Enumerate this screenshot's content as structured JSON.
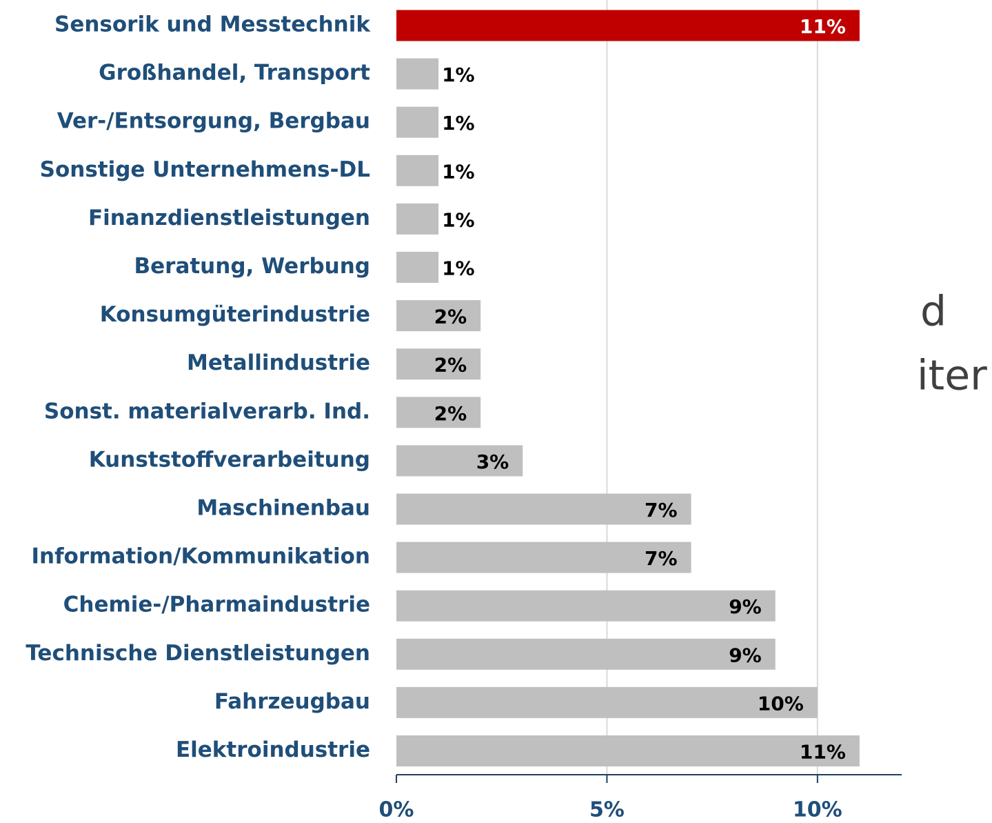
{
  "chart_data": {
    "type": "hbar",
    "categories": [
      "Sensorik und Messtechnik",
      "Großhandel, Transport",
      "Ver-/Entsorgung, Bergbau",
      "Sonstige Unternehmens-DL",
      "Finanzdienstleistungen",
      "Beratung, Werbung",
      "Konsumgüterindustrie",
      "Metallindustrie",
      "Sonst. materialverarb. Ind.",
      "Kunststoffverarbeitung",
      "Maschinenbau",
      "Information/Kommunikation",
      "Chemie-/Pharmaindustrie",
      "Technische Dienstleistungen",
      "Fahrzeugbau",
      "Elektroindustrie"
    ],
    "values": [
      11,
      1,
      1,
      1,
      1,
      1,
      2,
      2,
      2,
      3,
      7,
      7,
      9,
      9,
      10,
      11
    ],
    "value_labels": [
      "11%",
      "1%",
      "1%",
      "1%",
      "1%",
      "1%",
      "2%",
      "2%",
      "2%",
      "3%",
      "7%",
      "7%",
      "9%",
      "9%",
      "10%",
      "11%"
    ],
    "colors": [
      "#c00000",
      "#bfbfbf",
      "#bfbfbf",
      "#bfbfbf",
      "#bfbfbf",
      "#bfbfbf",
      "#bfbfbf",
      "#bfbfbf",
      "#bfbfbf",
      "#bfbfbf",
      "#bfbfbf",
      "#bfbfbf",
      "#bfbfbf",
      "#bfbfbf",
      "#bfbfbf",
      "#bfbfbf"
    ],
    "xlim": [
      0,
      12
    ],
    "xticks": [
      {
        "value": 0,
        "label": "0%"
      },
      {
        "value": 5,
        "label": "5%"
      },
      {
        "value": 10,
        "label": "10%"
      }
    ],
    "grid": true,
    "annotations": [
      "d",
      "iter"
    ]
  }
}
